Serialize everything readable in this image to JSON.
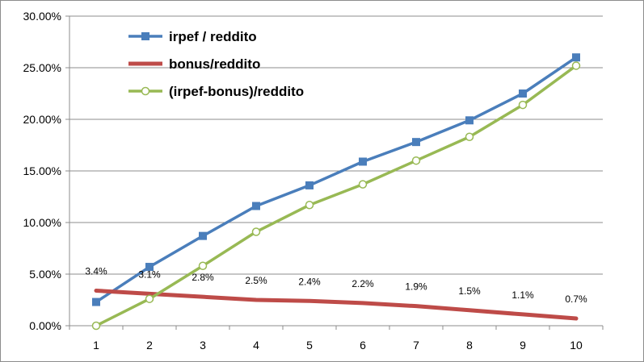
{
  "chart_data": {
    "type": "line",
    "title": "",
    "xlabel": "",
    "ylabel": "",
    "x": [
      1,
      2,
      3,
      4,
      5,
      6,
      7,
      8,
      9,
      10
    ],
    "ylim": [
      0,
      0.3
    ],
    "yticks": [
      0,
      0.05,
      0.1,
      0.15,
      0.2,
      0.25,
      0.3
    ],
    "ytick_labels": [
      "0.00%",
      "5.00%",
      "10.00%",
      "15.00%",
      "20.00%",
      "25.00%",
      "30.00%"
    ],
    "grid": "horizontal",
    "legend_position": "top-left",
    "series": [
      {
        "name": "irpef / reddito",
        "color": "#4a7ebb",
        "marker": "square",
        "values": [
          0.023,
          0.057,
          0.087,
          0.116,
          0.136,
          0.159,
          0.178,
          0.199,
          0.225,
          0.26
        ]
      },
      {
        "name": "bonus/reddito",
        "color": "#be4b48",
        "marker": "none",
        "values": [
          0.034,
          0.031,
          0.028,
          0.025,
          0.024,
          0.022,
          0.019,
          0.015,
          0.011,
          0.007
        ],
        "data_labels": [
          "3.4%",
          "3.1%",
          "2.8%",
          "2.5%",
          "2.4%",
          "2.2%",
          "1.9%",
          "1.5%",
          "1.1%",
          "0.7%"
        ]
      },
      {
        "name": "(irpef-bonus)/reddito",
        "color": "#98b954",
        "marker": "circle",
        "values": [
          0.0,
          0.026,
          0.058,
          0.091,
          0.117,
          0.137,
          0.16,
          0.183,
          0.214,
          0.252
        ]
      }
    ]
  }
}
